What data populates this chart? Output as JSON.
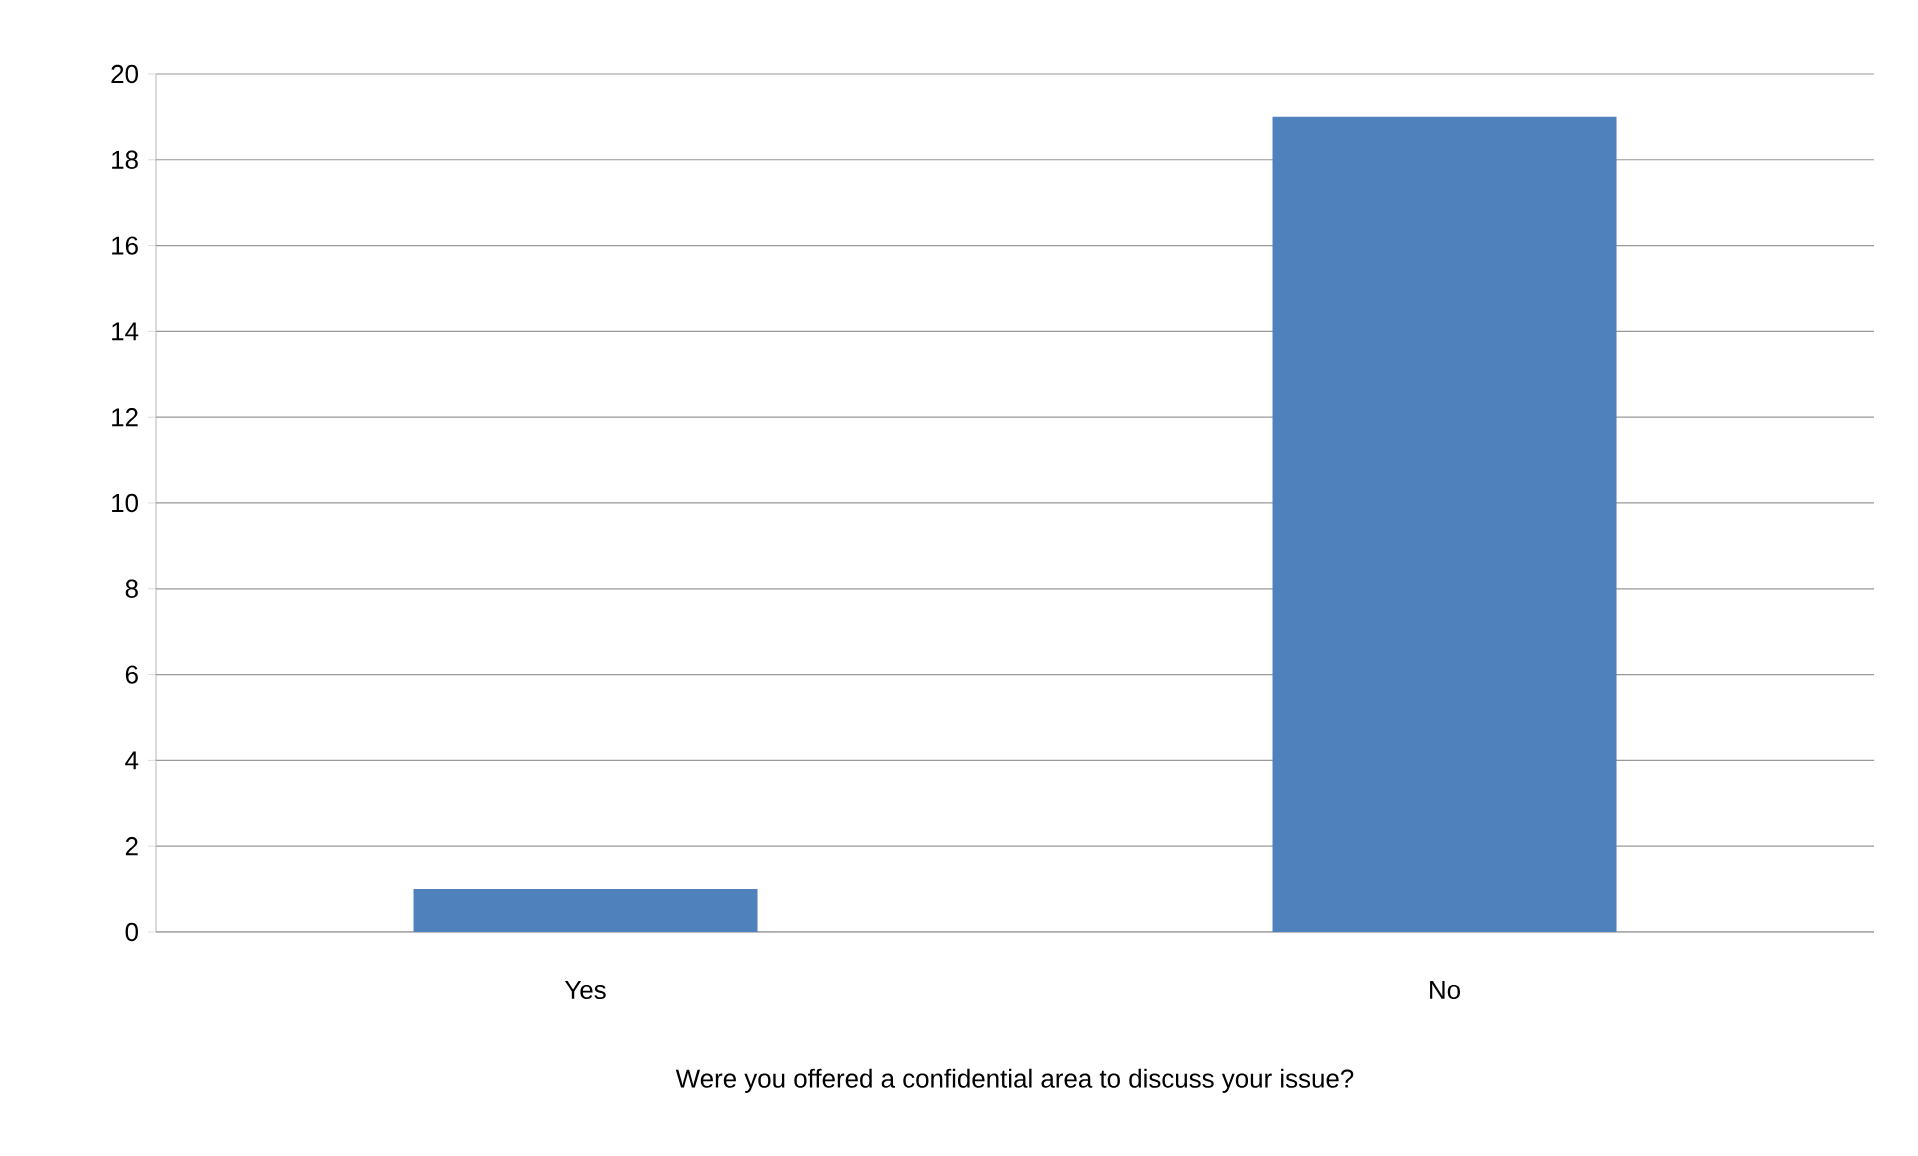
{
  "chart_data": {
    "type": "bar",
    "xlabel": "Were you offered a confidential area to discuss your issue?",
    "categories": [
      "Yes",
      "No"
    ],
    "values": [
      1,
      19
    ],
    "color": "#4f81bd",
    "ylim": [
      0,
      20
    ],
    "yticks": [
      0,
      2,
      4,
      6,
      8,
      10,
      12,
      14,
      16,
      18,
      20
    ],
    "grid": "y"
  }
}
